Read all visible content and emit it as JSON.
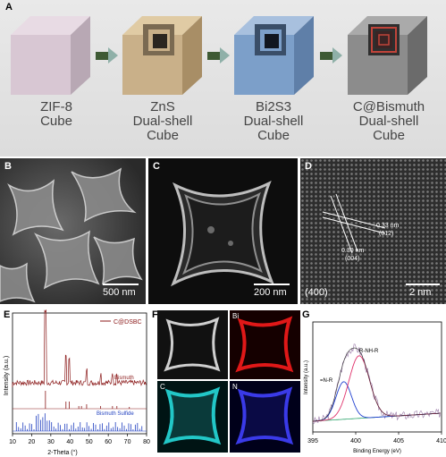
{
  "panelA": {
    "letter": "A",
    "cubes": [
      {
        "line1": "ZIF-8",
        "line2": "Cube",
        "line3": ""
      },
      {
        "line1": "ZnS",
        "line2": "Dual-shell",
        "line3": "Cube"
      },
      {
        "line1": "Bi2S3",
        "line2": "Dual-shell",
        "line3": "Cube"
      },
      {
        "line1": "C@Bismuth",
        "line2": "Dual-shell",
        "line3": "Cube"
      }
    ],
    "colors": {
      "zif8": "#d8c7d3",
      "zns": "#c9b089",
      "bi2s3": "#7c9fc9",
      "cbismuth": "#8c8c8c",
      "arrow": "#5a7f4a"
    }
  },
  "panelB": {
    "letter": "B",
    "scale": "500 nm"
  },
  "panelC": {
    "letter": "C",
    "scale": "200 nm"
  },
  "panelD": {
    "letter": "D",
    "scale": "2 nm",
    "label1": "0.33 nm",
    "label1b": "(012)",
    "label2": "0.30 nm",
    "label2b": "(004)",
    "zone": "(400)"
  },
  "panelE": {
    "letter": "E",
    "chart_data": {
      "type": "line",
      "xlabel": "2-Theta (°)",
      "ylabel": "Intensity (a.u.)",
      "xlim": [
        10,
        80
      ],
      "xticks": [
        "10",
        "20",
        "30",
        "40",
        "50",
        "60",
        "70",
        "80"
      ],
      "series": [
        {
          "name": "C@DSBC",
          "color": "#8b1a1a"
        },
        {
          "name": "Bismuth",
          "color": "#8b1a1a"
        },
        {
          "name": "Bismuth Sulfide",
          "color": "#1f3fbf"
        }
      ]
    }
  },
  "panelF": {
    "letter": "F",
    "maps": [
      "Bi",
      "C",
      "N"
    ]
  },
  "panelG": {
    "letter": "G",
    "chart_data": {
      "type": "line",
      "xlabel": "Binding Energy (eV)",
      "ylabel": "Intensity (a.u.)",
      "xlim": [
        395,
        410
      ],
      "xticks": [
        "395",
        "400",
        "405",
        "410"
      ],
      "annotations": [
        "R-NH-R",
        "=N-R"
      ]
    }
  }
}
